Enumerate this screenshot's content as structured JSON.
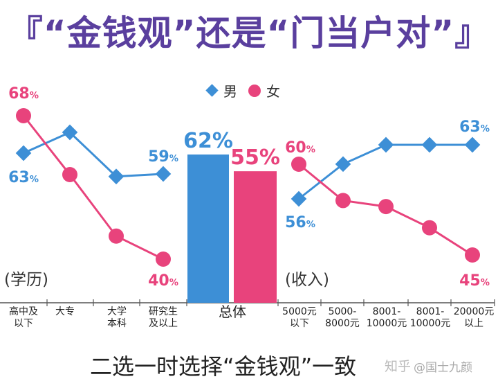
{
  "title": "『“金钱观”还是“门当户对”』",
  "legend": {
    "male": "男",
    "female": "女"
  },
  "colors": {
    "male": "#3d8fd6",
    "female": "#e8437c",
    "title": "#5a3f9e"
  },
  "chart_data": {
    "type": "line+bar",
    "title": "『“金钱观”还是“门当户对”』",
    "legend_placement": "top-center",
    "grid": false,
    "groups": [
      {
        "label": "(学历)",
        "categories": [
          "高中及\n以下",
          "大专",
          "大学\n本科",
          "研究生\n及以上"
        ],
        "series": [
          {
            "name": "男",
            "values": [
              63,
              67,
              58.5,
              59
            ],
            "labels": {
              "0": "63%",
              "3": "59%"
            }
          },
          {
            "name": "女",
            "values": [
              68,
              56.5,
              44.5,
              40
            ],
            "labels": {
              "0": "68%",
              "3": "40%"
            }
          }
        ]
      },
      {
        "label": "",
        "categories": [
          "总体"
        ],
        "series": [
          {
            "name": "男",
            "values": [
              62
            ],
            "labels": {
              "0": "62%"
            }
          },
          {
            "name": "女",
            "values": [
              55
            ],
            "labels": {
              "0": "55%"
            }
          }
        ]
      },
      {
        "label": "(收入)",
        "categories": [
          "5000元\n以下",
          "5000-\n8000元",
          "8001-\n10000元",
          "8001-\n10000元",
          "20000元\n以上"
        ],
        "series": [
          {
            "name": "男",
            "values": [
              56,
              60.5,
              63,
              63,
              63
            ],
            "labels": {
              "0": "56%",
              "4": "63%"
            }
          },
          {
            "name": "女",
            "values": [
              60,
              54,
              53,
              49.5,
              45
            ],
            "labels": {
              "0": "60%",
              "4": "45%"
            }
          }
        ]
      }
    ]
  },
  "caption": "二选一时选择“金钱观”一致",
  "watermark": "@国士九颜",
  "site_mark": "知乎"
}
